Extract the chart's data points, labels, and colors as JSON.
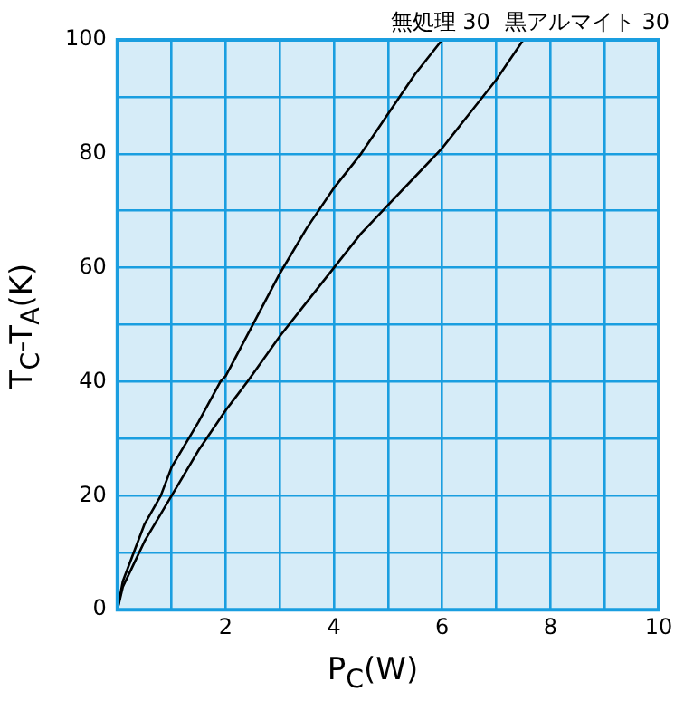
{
  "chart_data": {
    "type": "line",
    "xlabel": "P$_{C}$(W)",
    "ylabel": "T$_{C}$-T$_{A}$(K)",
    "xlim": [
      0,
      10
    ],
    "ylim": [
      0,
      100
    ],
    "xticks": [
      {
        "value": 0,
        "label": null
      },
      {
        "value": 1,
        "label": null
      },
      2,
      {
        "value": 3,
        "label": null
      },
      4,
      {
        "value": 5,
        "label": null
      },
      6,
      {
        "value": 7,
        "label": null
      },
      8,
      {
        "value": 9,
        "label": null
      },
      10
    ],
    "yticks": [
      0,
      {
        "value": 10,
        "label": null
      },
      20,
      {
        "value": 30,
        "label": null
      },
      40,
      {
        "value": 50,
        "label": null
      },
      60,
      {
        "value": 70,
        "label": null
      },
      80,
      {
        "value": 90,
        "label": null
      },
      100
    ],
    "grid": true,
    "legend": false,
    "marker": "none",
    "line_style": "solid",
    "series": [
      {
        "name": "無処理 30",
        "color": "#000000",
        "x": [
          0,
          0.1,
          0.3,
          0.5,
          0.8,
          1,
          1.5,
          1.9,
          2,
          2.5,
          3,
          3.5,
          4,
          4.5,
          5,
          5.5,
          6
        ],
        "values": [
          0,
          5,
          10,
          15,
          20,
          25,
          33,
          40,
          41,
          50,
          59,
          67,
          74,
          80,
          87,
          94,
          100
        ]
      },
      {
        "name": "黒アルマイト 30",
        "color": "#000000",
        "x": [
          0,
          0.1,
          0.3,
          0.5,
          1,
          1.5,
          2,
          2.4,
          3,
          3.5,
          4,
          4.5,
          5,
          5.5,
          6,
          6.5,
          7,
          7.5
        ],
        "values": [
          0,
          4,
          8,
          12,
          20,
          28,
          35,
          40,
          48,
          54,
          60,
          66,
          71,
          76,
          81,
          87,
          93,
          100
        ]
      }
    ]
  }
}
